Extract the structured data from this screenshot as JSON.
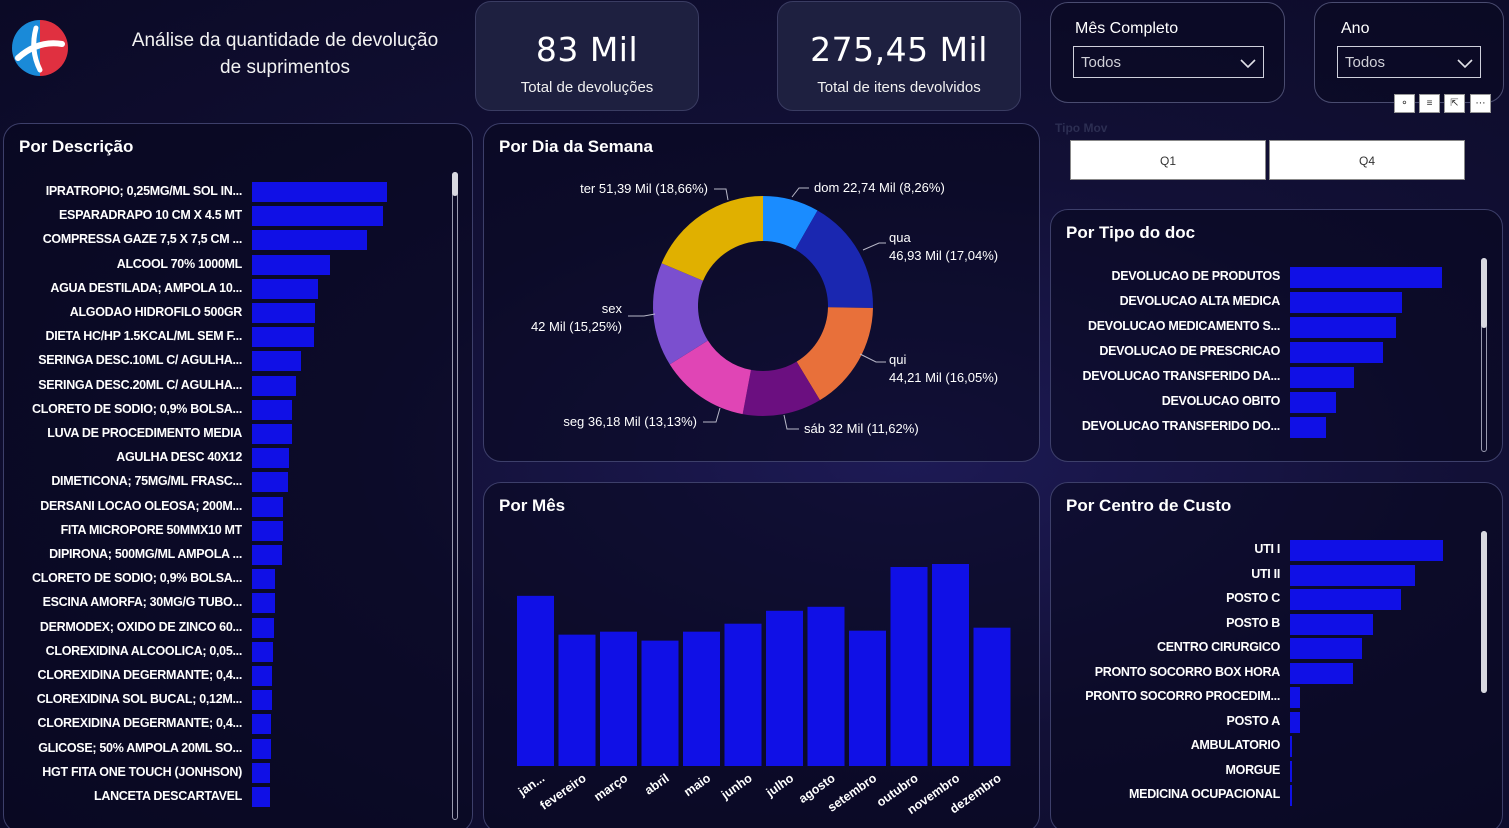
{
  "header": {
    "title_line1": "Análise da quantidade de devolução",
    "title_line2": "de suprimentos",
    "logo_icon": "hospital-logo-icon"
  },
  "kpis": [
    {
      "value": "83 Mil",
      "label": "Total de devoluções"
    },
    {
      "value": "275,45 Mil",
      "label": "Total de itens devolvidos"
    }
  ],
  "slicers": {
    "mes": {
      "title": "Mês Completo",
      "selected": "Todos"
    },
    "ano": {
      "title": "Ano",
      "selected": "Todos"
    },
    "tipo_mov": {
      "title": "Tipo Mov",
      "options": [
        "Q1",
        "Q4"
      ]
    }
  },
  "chart_data": [
    {
      "type": "bar",
      "orientation": "horizontal",
      "title": "Por Descrição",
      "categories": [
        "IPRATROPIO; 0,25MG/ML SOL IN...",
        "ESPARADRAPO 10 CM X 4.5 MT",
        "COMPRESSA GAZE 7,5 X 7,5 CM ...",
        "ALCOOL 70% 1000ML",
        "AGUA DESTILADA; AMPOLA 10...",
        "ALGODAO HIDROFILO 500GR",
        "DIETA HC/HP 1.5KCAL/ML SEM F...",
        "SERINGA DESC.10ML C/ AGULHA...",
        "SERINGA DESC.20ML C/ AGULHA...",
        "CLORETO DE SODIO; 0,9% BOLSA...",
        "LUVA DE PROCEDIMENTO MEDIA",
        "AGULHA DESC 40X12",
        "DIMETICONA; 75MG/ML FRASC...",
        "DERSANI LOCAO OLEOSA; 200M...",
        "FITA MICROPORE 50MMX10 MT",
        "DIPIRONA; 500MG/ML AMPOLA ...",
        "CLORETO DE SODIO; 0,9% BOLSA...",
        "ESCINA AMORFA; 30MG/G TUBO...",
        "DERMODEX; OXIDO DE ZINCO 60...",
        "CLOREXIDINA ALCOOLICA; 0,05...",
        "CLOREXIDINA DEGERMANTE; 0,4...",
        "CLOREXIDINA SOL BUCAL; 0,12M...",
        "CLOREXIDINA DEGERMANTE; 0,4...",
        "GLICOSE; 50% AMPOLA 20ML SO...",
        "HGT FITA ONE TOUCH (JONHSON)",
        "LANCETA DESCARTAVEL"
      ],
      "values": [
        135,
        131,
        115,
        78,
        66,
        63,
        62,
        49,
        44,
        40,
        40,
        37,
        36,
        31,
        31,
        30,
        23,
        23,
        22,
        21,
        20,
        20,
        19,
        19,
        18,
        18
      ]
    },
    {
      "type": "pie",
      "title": "Por Dia da Semana",
      "categories": [
        "dom",
        "qua",
        "qui",
        "sáb",
        "seg",
        "sex",
        "ter"
      ],
      "values": [
        22.74,
        46.93,
        44.21,
        32,
        36.18,
        42,
        51.39
      ],
      "labels": [
        "dom 22,74 Mil (8,26%)",
        "qua 46,93 Mil (17,04%)",
        "qui 44,21 Mil (16,05%)",
        "sáb 32 Mil (11,62%)",
        "seg 36,18 Mil (13,13%)",
        "sex 42 Mil (15,25%)",
        "ter 51,39 Mil (18,66%)"
      ],
      "colors": [
        "#1a8cff",
        "#1a27b0",
        "#e8703a",
        "#6b0f80",
        "#e045b5",
        "#7b4fcf",
        "#e0b000"
      ]
    },
    {
      "type": "bar",
      "title": "Por Mês",
      "categories": [
        "jan...",
        "fevereiro",
        "março",
        "abril",
        "maio",
        "junho",
        "julho",
        "agosto",
        "setembro",
        "outubro",
        "novembro",
        "dezembro"
      ],
      "values": [
        171,
        132,
        135,
        126,
        135,
        143,
        156,
        160,
        136,
        200,
        203,
        139
      ]
    },
    {
      "type": "bar",
      "orientation": "horizontal",
      "title": "Por Tipo do doc",
      "categories": [
        "DEVOLUCAO DE PRODUTOS",
        "DEVOLUCAO ALTA MEDICA",
        "DEVOLUCAO MEDICAMENTO S...",
        "DEVOLUCAO DE PRESCRICAO",
        "DEVOLUCAO TRANSFERIDO DA...",
        "DEVOLUCAO OBITO",
        "DEVOLUCAO TRANSFERIDO DO..."
      ],
      "values": [
        152,
        112,
        106,
        93,
        64,
        46,
        36
      ]
    },
    {
      "type": "bar",
      "orientation": "horizontal",
      "title": "Por Centro de Custo",
      "categories": [
        "UTI I",
        "UTI II",
        "POSTO C",
        "POSTO B",
        "CENTRO CIRURGICO",
        "PRONTO SOCORRO BOX HORA",
        "PRONTO SOCORRO PROCEDIM...",
        "POSTO A",
        "AMBULATORIO",
        "MORGUE",
        "MEDICINA OCUPACIONAL"
      ],
      "values": [
        153,
        125,
        111,
        83,
        72,
        63,
        10,
        10,
        1,
        1,
        1
      ]
    }
  ]
}
